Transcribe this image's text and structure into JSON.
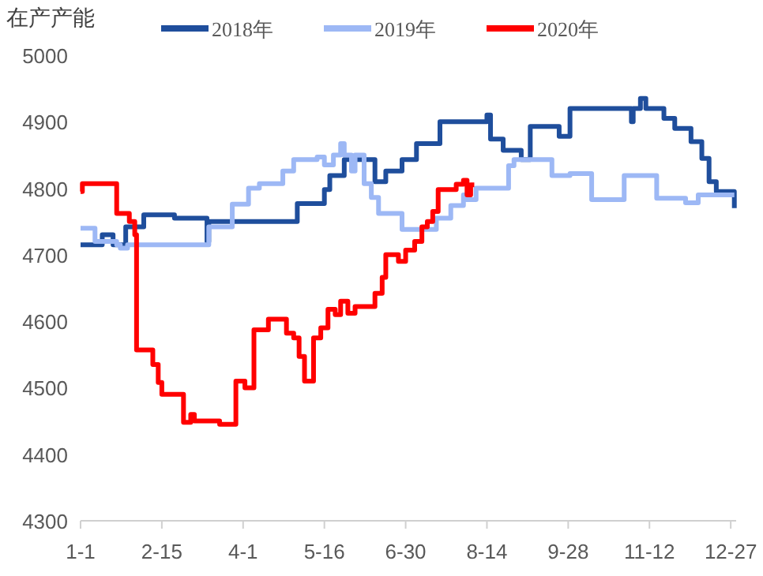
{
  "chart_data": {
    "type": "step",
    "ylabel": "在产产能",
    "legend": "top",
    "grid": false,
    "line_style": "solid",
    "marker": "none",
    "xlim": [
      "--01-01",
      "--12-30"
    ],
    "xticks": [
      {
        "value": "--01-01",
        "label": "1-1"
      },
      {
        "value": "--02-15",
        "label": "2-15"
      },
      {
        "value": "--04-01",
        "label": "4-1"
      },
      {
        "value": "--05-16",
        "label": "5-16"
      },
      {
        "value": "--06-30",
        "label": "6-30"
      },
      {
        "value": "--08-14",
        "label": "8-14"
      },
      {
        "value": "--09-28",
        "label": "9-28"
      },
      {
        "value": "--11-12",
        "label": "11-12"
      },
      {
        "value": "--12-27",
        "label": "12-27"
      }
    ],
    "ylim": [
      4300,
      5000
    ],
    "yticks": [
      4300,
      4400,
      4500,
      4600,
      4700,
      4800,
      4900,
      5000
    ],
    "series": [
      {
        "name": "2018年",
        "color": "#1f4e9c",
        "x": [
          "--01-01",
          "--01-13",
          "--01-19",
          "--01-26",
          "--02-05",
          "--02-22",
          "--03-12",
          "--03-13",
          "--05-01",
          "--05-16",
          "--05-19",
          "--05-27",
          "--06-13",
          "--06-19",
          "--06-28",
          "--07-06",
          "--07-19",
          "--08-14",
          "--08-16",
          "--08-23",
          "--09-02",
          "--09-07",
          "--09-23",
          "--09-29",
          "--11-02",
          "--11-03",
          "--11-07",
          "--11-10",
          "--11-20",
          "--11-26",
          "--12-05",
          "--12-11",
          "--12-15",
          "--12-19",
          "--12-29"
        ],
        "values": [
          4715,
          4730,
          4715,
          4742,
          4760,
          4755,
          4720,
          4750,
          4777,
          4798,
          4819,
          4843,
          4810,
          4826,
          4843,
          4867,
          4900,
          4910,
          4874,
          4857,
          4843,
          4893,
          4878,
          4920,
          4900,
          4920,
          4935,
          4920,
          4905,
          4890,
          4870,
          4845,
          4810,
          4795,
          4770
        ]
      },
      {
        "name": "2019年",
        "color": "#9db8f5",
        "x": [
          "--01-01",
          "--01-09",
          "--01-21",
          "--01-23",
          "--01-27",
          "--03-13",
          "--03-26",
          "--04-04",
          "--04-10",
          "--04-23",
          "--04-29",
          "--05-12",
          "--05-16",
          "--05-21",
          "--05-25",
          "--05-27",
          "--05-31",
          "--06-02",
          "--06-07",
          "--06-11",
          "--06-15",
          "--06-28",
          "--07-17",
          "--07-25",
          "--08-01",
          "--08-03",
          "--08-08",
          "--08-26",
          "--08-29",
          "--09-19",
          "--09-29",
          "--10-11",
          "--10-29",
          "--11-16",
          "--12-02",
          "--12-09",
          "--12-29"
        ],
        "values": [
          4740,
          4720,
          4715,
          4710,
          4715,
          4742,
          4776,
          4800,
          4807,
          4826,
          4843,
          4847,
          4835,
          4850,
          4867,
          4850,
          4826,
          4850,
          4807,
          4786,
          4762,
          4738,
          4755,
          4774,
          4790,
          4783,
          4800,
          4834,
          4843,
          4819,
          4822,
          4783,
          4819,
          4785,
          4778,
          4790,
          4790
        ]
      },
      {
        "name": "2020年",
        "color": "#ff0000",
        "x": [
          "--01-01",
          "--01-02",
          "--01-21",
          "--01-28",
          "--01-31",
          "--02-01",
          "--02-10",
          "--02-13",
          "--02-15",
          "--02-27",
          "--03-03",
          "--03-05",
          "--03-19",
          "--03-28",
          "--04-02",
          "--04-07",
          "--04-15",
          "--04-25",
          "--04-29",
          "--05-02",
          "--05-05",
          "--05-10",
          "--05-14",
          "--05-18",
          "--05-22",
          "--05-25",
          "--05-29",
          "--06-02",
          "--06-13",
          "--06-17",
          "--06-19",
          "--06-26",
          "--06-30",
          "--07-05",
          "--07-09",
          "--07-12",
          "--07-15",
          "--07-18",
          "--07-28",
          "--08-01",
          "--08-03",
          "--08-05",
          "--08-07"
        ],
        "values": [
          4795,
          4807,
          4762,
          4750,
          4730,
          4557,
          4535,
          4508,
          4490,
          4448,
          4460,
          4450,
          4445,
          4510,
          4500,
          4587,
          4603,
          4582,
          4575,
          4547,
          4510,
          4575,
          4590,
          4618,
          4610,
          4630,
          4612,
          4622,
          4642,
          4666,
          4700,
          4690,
          4707,
          4720,
          4742,
          4750,
          4765,
          4798,
          4806,
          4812,
          4790,
          4805,
          4805
        ]
      }
    ]
  }
}
